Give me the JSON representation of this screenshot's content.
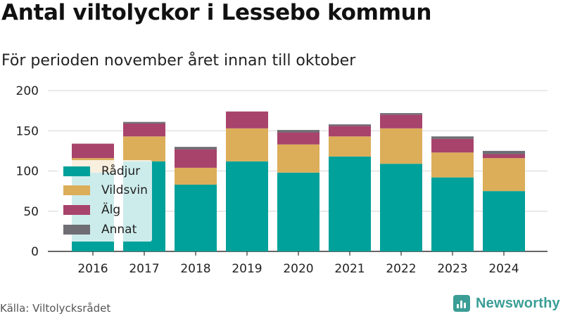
{
  "title": "Antal viltolyckor i Lessebo kommun",
  "subtitle": "För perioden november året innan till oktober",
  "source": "Källa: Viltolycksrådet",
  "brand": "Newsworthy",
  "colors": {
    "radjur": "#00a19a",
    "vildsvin": "#dcae5a",
    "alg": "#a8436c",
    "annat": "#6e6e74",
    "brand": "#3a9e96"
  },
  "chart_data": {
    "type": "bar",
    "stacked": true,
    "title": "Antal viltolyckor i Lessebo kommun",
    "subtitle": "För perioden november året innan till oktober",
    "categories": [
      "2016",
      "2017",
      "2018",
      "2019",
      "2020",
      "2021",
      "2022",
      "2023",
      "2024"
    ],
    "ylim": [
      0,
      200
    ],
    "yticks": [
      0,
      50,
      100,
      150,
      200
    ],
    "grid": true,
    "legend_position": "left",
    "series": [
      {
        "name": "Rådjur",
        "color": "#00a19a",
        "values": [
          98,
          112,
          83,
          112,
          98,
          118,
          109,
          92,
          75
        ]
      },
      {
        "name": "Vildsvin",
        "color": "#dcae5a",
        "values": [
          18,
          31,
          21,
          41,
          35,
          25,
          44,
          31,
          41
        ]
      },
      {
        "name": "Älg",
        "color": "#a8436c",
        "values": [
          18,
          16,
          23,
          21,
          15,
          13,
          17,
          17,
          5
        ]
      },
      {
        "name": "Annat",
        "color": "#6e6e74",
        "values": [
          0,
          2,
          3,
          0,
          3,
          2,
          2,
          3,
          4
        ]
      }
    ]
  }
}
